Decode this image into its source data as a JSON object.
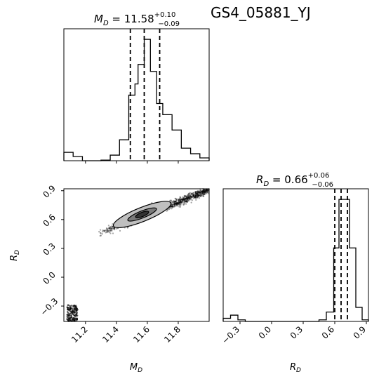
{
  "figure_title": "GS4_05881_YJ",
  "chart_data": [
    {
      "type": "histogram",
      "panel": "marginal M_D",
      "title_param": "M_D",
      "title_value": "11.58",
      "title_upper": "+0.10",
      "title_lower": "−0.09",
      "xlim": [
        11.06,
        12.0
      ],
      "bin_edges": [
        11.06,
        11.12,
        11.18,
        11.24,
        11.3,
        11.36,
        11.42,
        11.48,
        11.52,
        11.54,
        11.58,
        11.62,
        11.66,
        11.7,
        11.76,
        11.82,
        11.88,
        11.94,
        12.0
      ],
      "counts": [
        0.06,
        0.03,
        0.0,
        0.0,
        0.004,
        0.04,
        0.15,
        0.47,
        0.55,
        0.69,
        0.87,
        0.64,
        0.41,
        0.33,
        0.22,
        0.09,
        0.05,
        0.02
      ],
      "quantiles": [
        11.49,
        11.58,
        11.68
      ],
      "xticks": [
        "11.2",
        "11.4",
        "11.6",
        "11.8"
      ]
    },
    {
      "type": "histogram",
      "panel": "marginal R_D",
      "title_param": "R_D",
      "title_value": "0.66",
      "title_upper": "+0.06",
      "title_lower": "−0.06",
      "xlim": [
        -0.46,
        0.92
      ],
      "bin_edges": [
        -0.46,
        -0.39,
        -0.32,
        -0.25,
        -0.18,
        -0.11,
        -0.04,
        0.03,
        0.1,
        0.17,
        0.24,
        0.31,
        0.38,
        0.45,
        0.52,
        0.59,
        0.64,
        0.69,
        0.74,
        0.8,
        0.86,
        0.92
      ],
      "counts": [
        0.02,
        0.04,
        0.01,
        0.0,
        0.0,
        0.0,
        0.0,
        0.0,
        0.0,
        0.0,
        0.0,
        0.0,
        0.0,
        0.01,
        0.06,
        0.47,
        0.78,
        0.78,
        0.47,
        0.09,
        0.01
      ],
      "quantiles": [
        0.6,
        0.66,
        0.72
      ],
      "xticks": [
        "−0.3",
        "0.0",
        "0.3",
        "0.6",
        "0.9"
      ],
      "xlabel": "R_D"
    },
    {
      "type": "scatter",
      "panel": "2D M_D vs R_D",
      "xlim": [
        11.06,
        12.0
      ],
      "ylim": [
        -0.46,
        0.92
      ],
      "xlabel": "M_D",
      "ylabel": "R_D",
      "xticks": [
        "11.2",
        "11.4",
        "11.6",
        "11.8"
      ],
      "yticks": [
        "−0.3",
        "0.0",
        "0.3",
        "0.6",
        "0.9"
      ],
      "main_band": {
        "x_start": 11.3,
        "y_start": 0.46,
        "x_end": 12.0,
        "y_end": 0.91
      },
      "secondary_cluster": {
        "x_range": [
          11.08,
          11.15
        ],
        "y_range": [
          -0.46,
          -0.29
        ]
      },
      "peak": {
        "x": 11.58,
        "y": 0.66
      }
    }
  ]
}
